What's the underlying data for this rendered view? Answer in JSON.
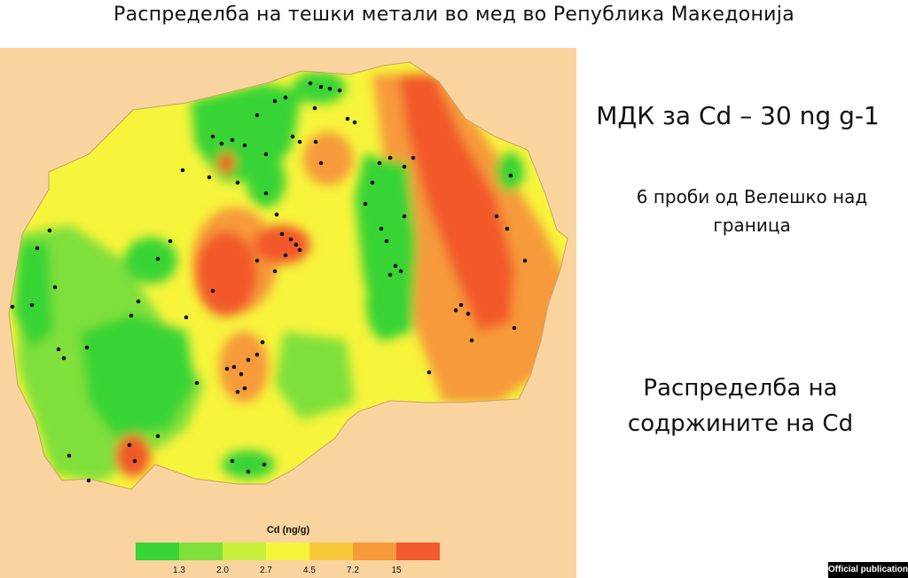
{
  "title": "Распределба на тешки метали во мед во Република Македонија",
  "side_text": {
    "mdk": "МДК за Cd – 30 ng g-1",
    "samples_over_limit": "6 проби од Велешко над граница",
    "distribution_caption": "Распределба на содржините на Cd"
  },
  "legend": {
    "title": "Cd (ng/g)",
    "ticks": [
      "1.3",
      "2.0",
      "2.7",
      "4.5",
      "7.2",
      "15"
    ],
    "colors": [
      "#39d435",
      "#7fe03a",
      "#c7f03c",
      "#f7f43c",
      "#f7c83a",
      "#f69a3a",
      "#f2592c"
    ]
  },
  "colors": {
    "background": "#f9d49f",
    "sample_dot": "#111111"
  },
  "badge": "Official publication"
}
